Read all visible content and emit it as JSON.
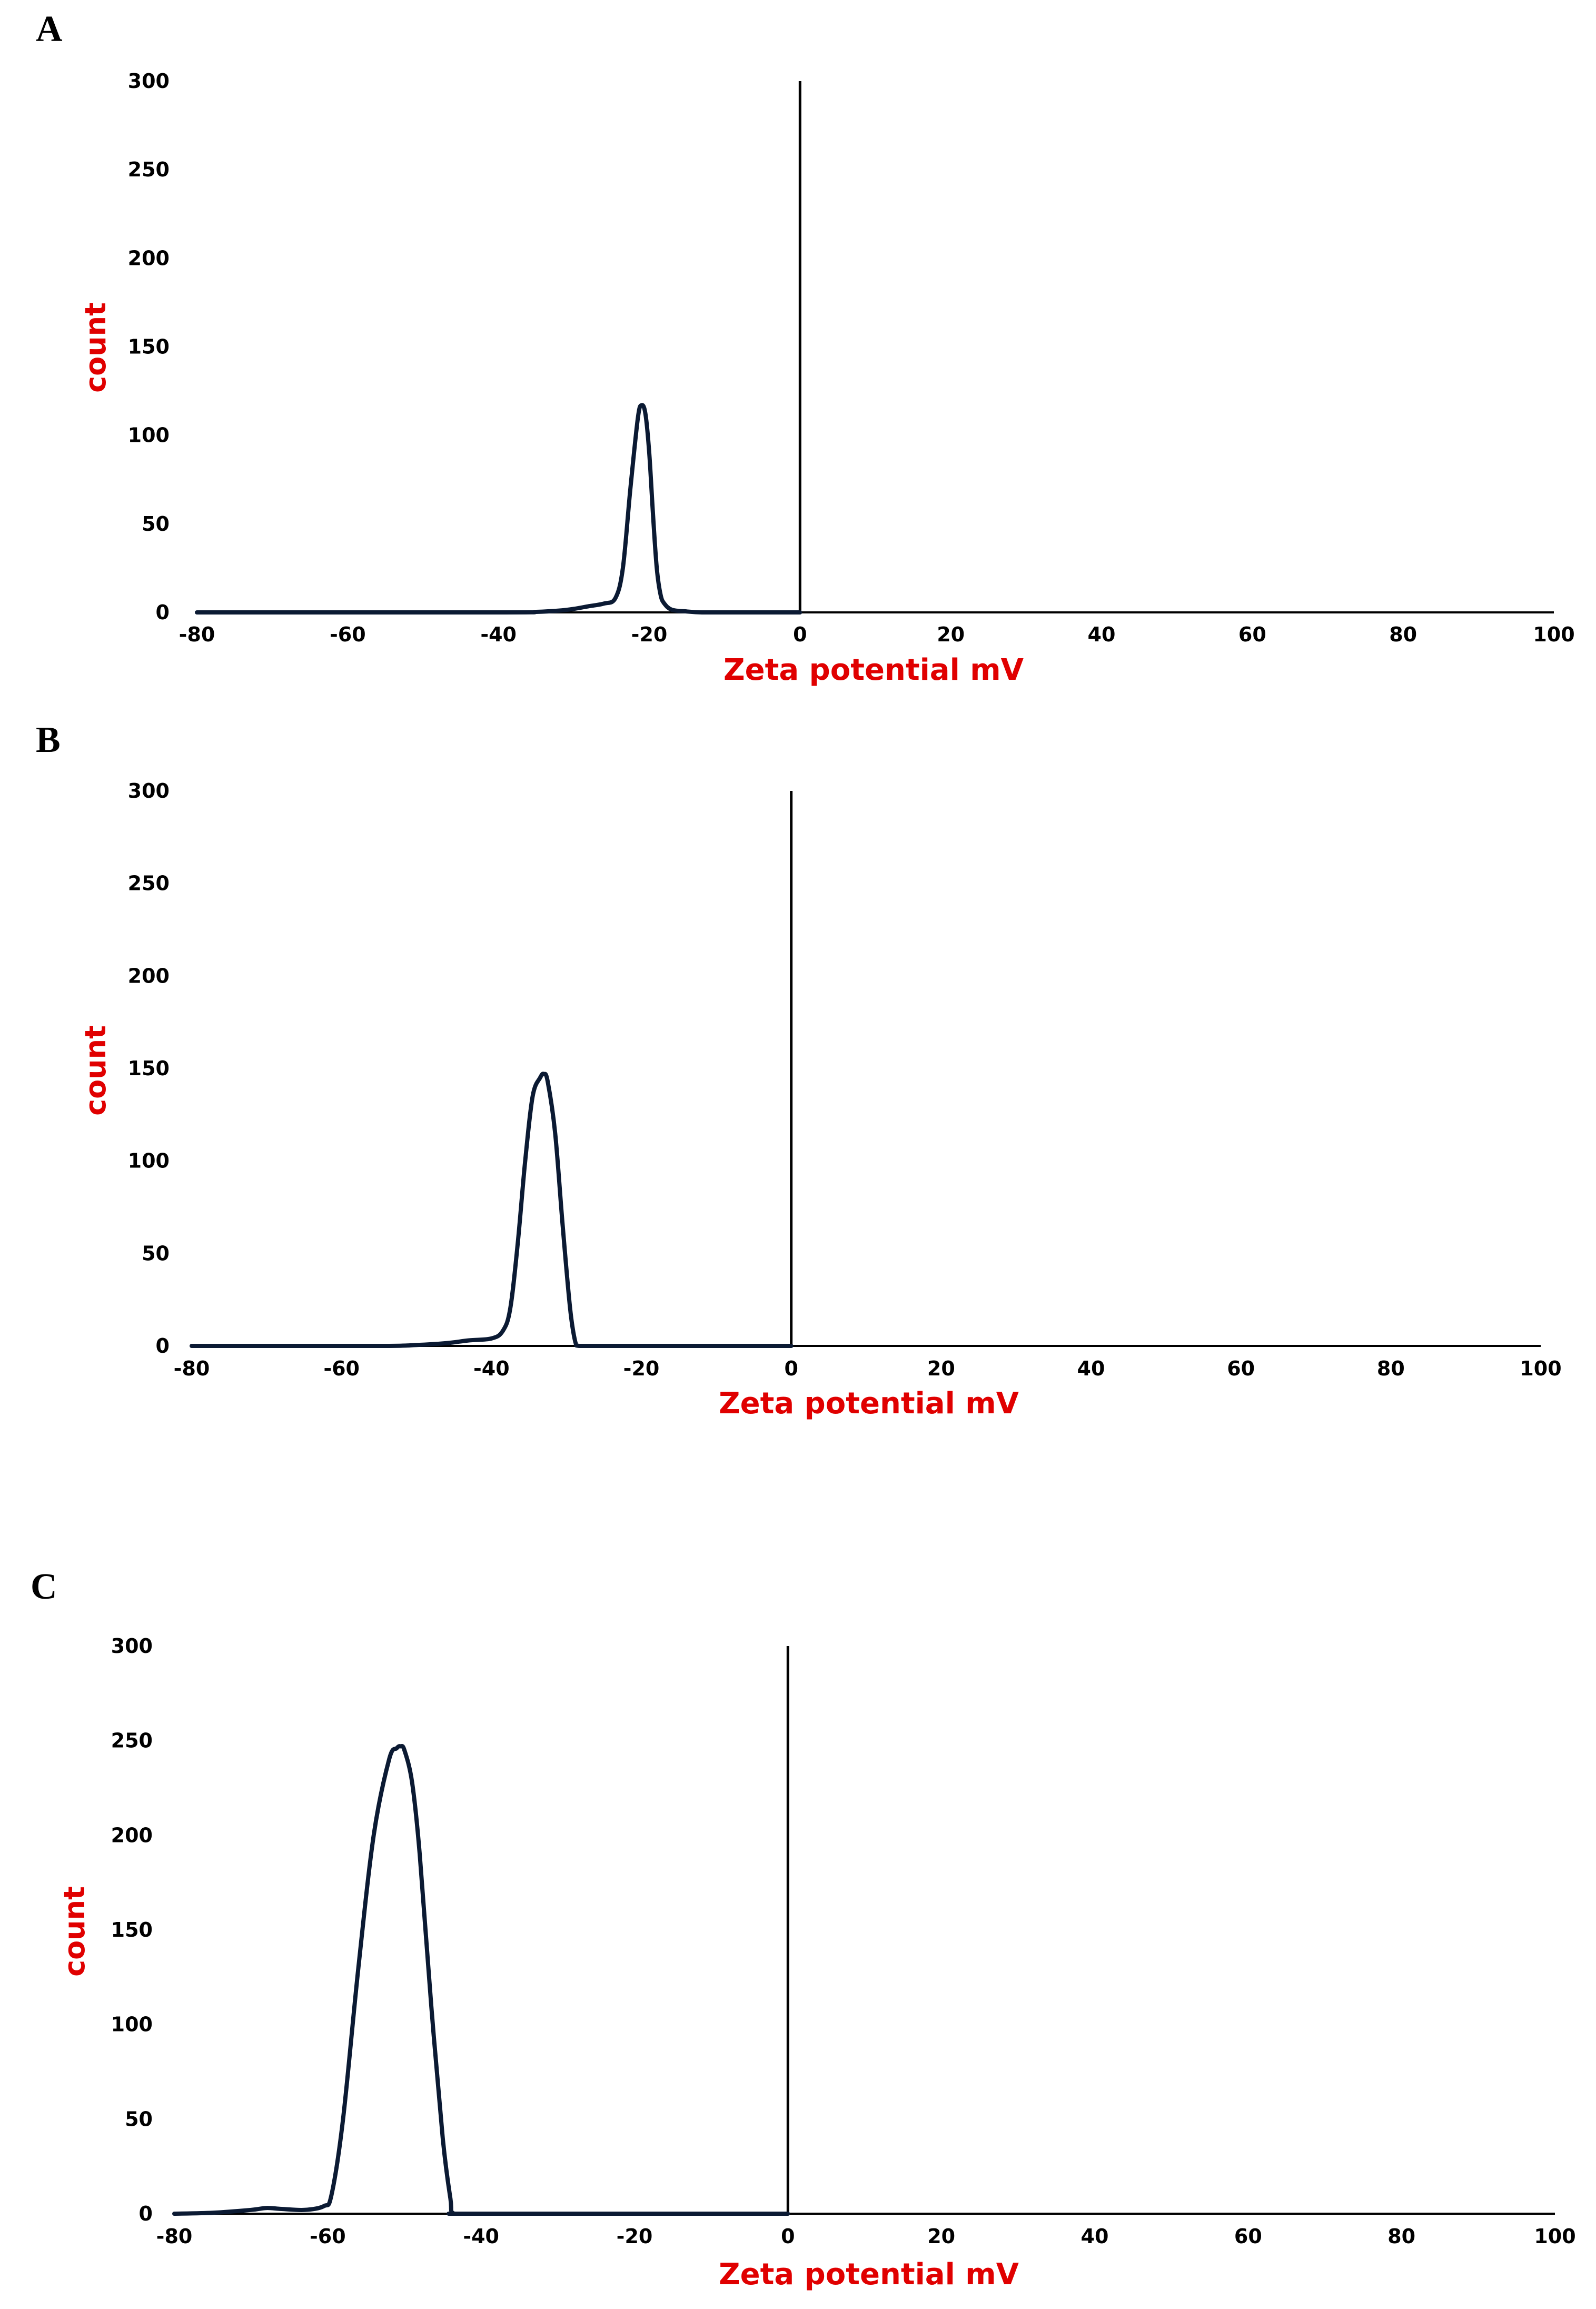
{
  "colors": {
    "curve": "#0b1a33",
    "axis": "#000000",
    "axis_title": "#e00000",
    "background": "#ffffff"
  },
  "chart_data": [
    {
      "type": "line",
      "panel": "A",
      "xlabel": "Zeta potential mV",
      "ylabel": "count",
      "xlim": [
        -80,
        100
      ],
      "ylim": [
        0,
        300
      ],
      "xticks": [
        "-80",
        "-60",
        "-40",
        "-20",
        "0",
        "20",
        "40",
        "60",
        "80",
        "100"
      ],
      "yticks": [
        "0",
        "50",
        "100",
        "150",
        "200",
        "250",
        "300"
      ],
      "grid": false,
      "x": [
        -80,
        -40,
        -35,
        -32,
        -30,
        -28,
        -26,
        -24.5,
        -23.5,
        -22.5,
        -21.5,
        -21,
        -20.5,
        -20,
        -19.5,
        -19,
        -18.5,
        -18,
        -17,
        -15,
        -13,
        -10,
        0
      ],
      "y": [
        0,
        0,
        0.3,
        1,
        2,
        3.5,
        5,
        8,
        25,
        70,
        110,
        117,
        112,
        90,
        55,
        25,
        10,
        5,
        1.5,
        0.5,
        0,
        0,
        0
      ]
    },
    {
      "type": "line",
      "panel": "B",
      "xlabel": "Zeta potential mV",
      "ylabel": "count",
      "xlim": [
        -80,
        100
      ],
      "ylim": [
        0,
        300
      ],
      "xticks": [
        "-80",
        "-60",
        "-40",
        "-20",
        "0",
        "20",
        "40",
        "60",
        "80",
        "100"
      ],
      "yticks": [
        "0",
        "50",
        "100",
        "150",
        "200",
        "250",
        "300"
      ],
      "grid": false,
      "x": [
        -80,
        -55,
        -50,
        -46,
        -43,
        -40,
        -38.5,
        -37.5,
        -36.5,
        -35.5,
        -34.5,
        -33.5,
        -33,
        -32.5,
        -31.5,
        -30.5,
        -29.5,
        -28.8,
        -28.3,
        -25,
        -20,
        0
      ],
      "y": [
        0,
        0,
        0.5,
        1.5,
        3,
        4,
        8,
        20,
        55,
        100,
        135,
        145,
        147,
        143,
        115,
        65,
        20,
        2,
        0,
        0,
        0,
        0
      ]
    },
    {
      "type": "line",
      "panel": "C",
      "xlabel": "Zeta potential mV",
      "ylabel": "count",
      "xlim": [
        -80,
        100
      ],
      "ylim": [
        0,
        300
      ],
      "xticks": [
        "-80",
        "-60",
        "-40",
        "-20",
        "0",
        "20",
        "40",
        "60",
        "80",
        "100"
      ],
      "yticks": [
        "0",
        "50",
        "100",
        "150",
        "200",
        "250",
        "300"
      ],
      "grid": false,
      "x": [
        -80,
        -75,
        -70,
        -68,
        -66,
        -63,
        -60.5,
        -59.5,
        -58,
        -56,
        -54,
        -52,
        -51,
        -50.5,
        -50,
        -49,
        -48,
        -46.5,
        -45,
        -44,
        -43.5,
        -40,
        0
      ],
      "y": [
        0,
        0.5,
        2,
        3,
        2.5,
        2,
        4,
        10,
        50,
        130,
        200,
        240,
        246,
        247,
        245,
        228,
        190,
        110,
        40,
        8,
        0,
        0,
        0
      ]
    }
  ]
}
